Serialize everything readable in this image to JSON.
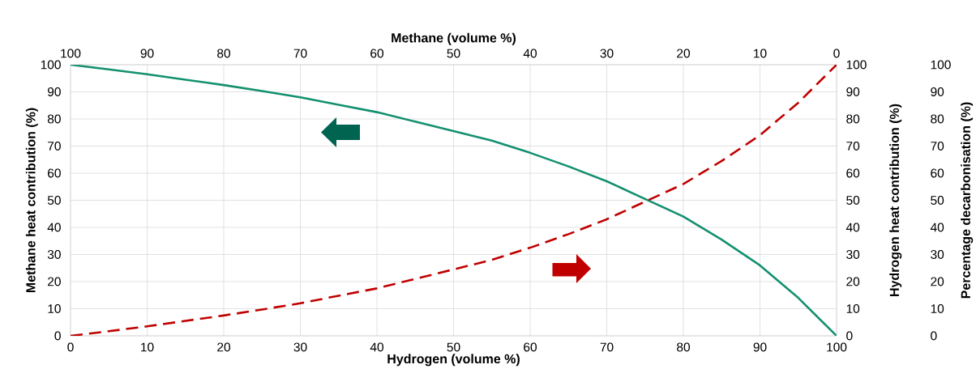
{
  "chart_data": {
    "type": "line",
    "xlabel": "Hydrogen (volume %)",
    "x2label": "Methane (volume %)",
    "ylabel": "Methane heat contribution (%)",
    "y2label": "Hydrogen heat contribution (%)",
    "y3label": "Percentage decarbonisation (%)",
    "x": [
      0,
      5,
      10,
      15,
      20,
      25,
      30,
      35,
      40,
      45,
      50,
      55,
      60,
      65,
      70,
      75,
      80,
      85,
      90,
      95,
      100
    ],
    "series": [
      {
        "color": "#13906f",
        "line_style": "solid",
        "axis": "y",
        "values": [
          100,
          98.3,
          96.5,
          94.5,
          92.5,
          90.3,
          88,
          85.2,
          82.5,
          79,
          75.5,
          72,
          67.5,
          62.5,
          57,
          50.5,
          44,
          35.5,
          26,
          14,
          0
        ]
      },
      {
        "color": "#c00000",
        "line_style": "dashed",
        "axis": "y2",
        "values": [
          0,
          1.7,
          3.5,
          5.5,
          7.5,
          9.7,
          12,
          14.8,
          17.5,
          21,
          24.5,
          28,
          32.5,
          37.5,
          43,
          49.5,
          56,
          64.5,
          74,
          86,
          100
        ]
      }
    ],
    "xlim": [
      0,
      100
    ],
    "xticks": [
      0,
      10,
      20,
      30,
      40,
      50,
      60,
      70,
      80,
      90,
      100
    ],
    "x2lim": [
      100,
      0
    ],
    "x2ticks": [
      100,
      90,
      80,
      70,
      60,
      50,
      40,
      30,
      20,
      10,
      0
    ],
    "ylim": [
      0,
      100
    ],
    "yticks": [
      0,
      10,
      20,
      30,
      40,
      50,
      60,
      70,
      80,
      90,
      100
    ],
    "y2lim": [
      0,
      100
    ],
    "y2ticks": [
      0,
      10,
      20,
      30,
      40,
      50,
      60,
      70,
      80,
      90,
      100
    ],
    "y3lim": [
      0,
      100
    ],
    "y3ticks": [
      0,
      10,
      20,
      30,
      40,
      50,
      60,
      70,
      80,
      90,
      100
    ],
    "grid": true
  }
}
